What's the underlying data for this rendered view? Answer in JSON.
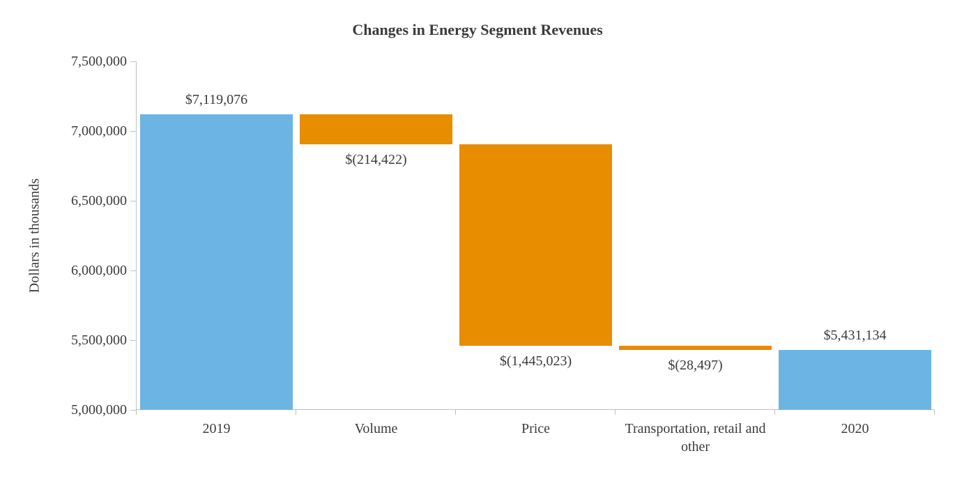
{
  "chart_data": {
    "type": "bar",
    "subtype": "waterfall",
    "title": "Changes in Energy Segment Revenues",
    "ylabel": "Dollars in thousands",
    "ylim": [
      5000000,
      7500000
    ],
    "grid": false,
    "legend": "none",
    "colors": {
      "total": "#6cb4e4",
      "decrease": "#e88c00"
    },
    "yticks": [
      {
        "value": 5000000,
        "label": "5,000,000"
      },
      {
        "value": 5500000,
        "label": "5,500,000"
      },
      {
        "value": 6000000,
        "label": "6,000,000"
      },
      {
        "value": 6500000,
        "label": "6,500,000"
      },
      {
        "value": 7000000,
        "label": "7,000,000"
      },
      {
        "value": 7500000,
        "label": "7,500,000"
      }
    ],
    "bars": [
      {
        "category": "2019",
        "label": "$7,119,076",
        "start": 5000000,
        "end": 7119076,
        "value": 7119076,
        "kind": "total",
        "label_pos": "above"
      },
      {
        "category": "Volume",
        "label": "$(214,422)",
        "start": 7119076,
        "end": 6904654,
        "value": -214422,
        "kind": "decrease",
        "label_pos": "below"
      },
      {
        "category": "Price",
        "label": "$(1,445,023)",
        "start": 6904654,
        "end": 5459631,
        "value": -1445023,
        "kind": "decrease",
        "label_pos": "below"
      },
      {
        "category": "Transportation, retail and other",
        "label": "$(28,497)",
        "start": 5459631,
        "end": 5431134,
        "value": -28497,
        "kind": "decrease",
        "label_pos": "below"
      },
      {
        "category": "2020",
        "label": "$5,431,134",
        "start": 5000000,
        "end": 5431134,
        "value": 5431134,
        "kind": "total",
        "label_pos": "above"
      }
    ]
  }
}
